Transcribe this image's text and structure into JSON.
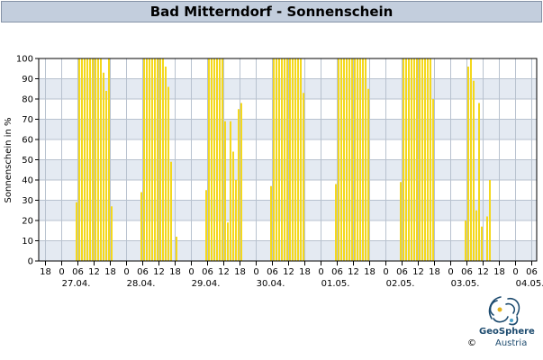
{
  "title": "Bad Mitterndorf - Sonnenschein",
  "copyright": "©",
  "logo": {
    "name": "GeoSphere",
    "sub": "Austria",
    "icon": "geosphere-swirl-icon"
  },
  "colors": {
    "bar": "#f4d81c",
    "plot_band_light": "#ffffff",
    "plot_band_dark": "#e4eaf2",
    "grid": "#b8c2cf",
    "title_bg": "#c3cedd"
  },
  "chart_data": {
    "type": "bar",
    "title": "Bad Mitterndorf - Sonnenschein",
    "ylabel": "Sonnenschein in %",
    "xlabel": "",
    "ylim": [
      0,
      100
    ],
    "yticks": [
      0,
      10,
      20,
      30,
      40,
      50,
      60,
      70,
      80,
      90,
      100
    ],
    "x_hour_ticks": [
      "18",
      "0",
      "06",
      "12",
      "18",
      "0",
      "06",
      "12",
      "18",
      "0",
      "06",
      "12",
      "18",
      "0",
      "06",
      "12",
      "18",
      "0",
      "06",
      "12",
      "18",
      "0",
      "06",
      "12",
      "18",
      "0",
      "06",
      "12",
      "18",
      "0",
      "06",
      "12",
      "18",
      "0",
      "06"
    ],
    "date_labels": [
      "27.04.",
      "28.04.",
      "29.04.",
      "30.04.",
      "01.05.",
      "02.05.",
      "03.05.",
      "04.05."
    ],
    "grid": true,
    "series": [
      {
        "values": [
          0,
          0,
          0,
          0,
          0,
          29,
          100,
          100,
          100,
          100,
          100,
          100,
          100,
          100,
          100,
          93,
          84,
          100,
          27,
          0,
          0,
          0,
          0,
          0,
          0,
          0,
          0,
          0,
          0,
          34,
          100,
          100,
          100,
          100,
          100,
          100,
          100,
          100,
          96,
          86,
          49,
          0,
          12,
          0,
          0,
          0,
          0,
          0,
          0,
          0,
          0,
          0,
          0,
          35,
          100,
          100,
          100,
          100,
          100,
          100,
          69,
          19,
          69,
          54,
          40,
          75,
          78,
          0,
          0,
          0,
          0,
          0,
          0,
          0,
          0,
          0,
          0,
          37,
          100,
          100,
          100,
          100,
          100,
          100,
          100,
          100,
          100,
          100,
          100,
          83,
          0,
          0,
          0,
          0,
          0,
          0,
          0,
          0,
          0,
          0,
          0,
          38,
          100,
          100,
          100,
          100,
          100,
          100,
          100,
          100,
          100,
          100,
          100,
          85,
          0,
          0,
          0,
          0,
          0,
          0,
          0,
          0,
          0,
          0,
          0,
          39,
          100,
          100,
          100,
          100,
          100,
          100,
          100,
          100,
          100,
          100,
          100,
          80,
          0,
          0,
          0,
          0,
          0,
          0,
          0,
          0,
          0,
          0,
          0,
          20,
          96,
          100,
          89,
          25,
          78,
          17,
          0,
          22,
          40,
          0,
          0,
          0,
          0,
          0,
          0,
          0,
          0,
          0,
          0,
          0,
          0,
          0,
          0,
          0,
          0,
          0,
          0,
          0,
          0,
          0,
          0,
          0,
          0,
          0,
          0,
          0,
          0,
          0,
          0,
          0,
          0,
          0,
          0
        ]
      }
    ]
  }
}
